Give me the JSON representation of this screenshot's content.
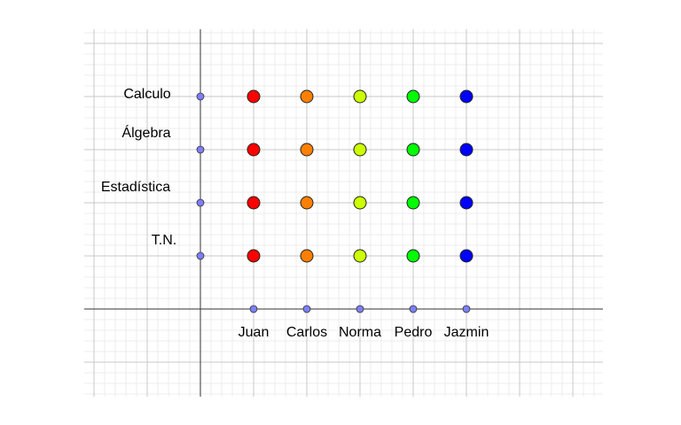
{
  "rows": [
    "Calculo",
    "Álgebra",
    "Estadística",
    "T.N."
  ],
  "columns": [
    "Juan",
    "Carlos",
    "Norma",
    "Pedro",
    "Jazmin"
  ],
  "column_colors": [
    "#ff0000",
    "#ff8000",
    "#ccff00",
    "#00ff00",
    "#0000ff"
  ]
}
